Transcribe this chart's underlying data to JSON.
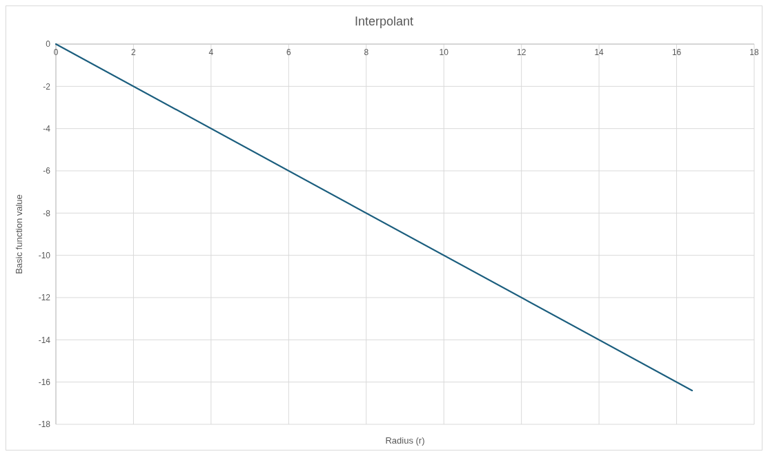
{
  "chart_data": {
    "type": "line",
    "title": "Interpolant",
    "xlabel": "Radius (r)",
    "ylabel": "Basic function value",
    "x": [
      0,
      16.4
    ],
    "series": [
      {
        "color": "#1b5e7e",
        "values": [
          0,
          -16.4
        ]
      }
    ],
    "xlim": [
      0,
      18
    ],
    "xticks": [
      0,
      2,
      4,
      6,
      8,
      10,
      12,
      14,
      16,
      18
    ],
    "ylim": [
      -18,
      0
    ],
    "yticks": [
      0,
      -2,
      -4,
      -6,
      -8,
      -10,
      -12,
      -14,
      -16,
      -18
    ],
    "grid": true,
    "marker": "none",
    "line_style": "solid"
  }
}
